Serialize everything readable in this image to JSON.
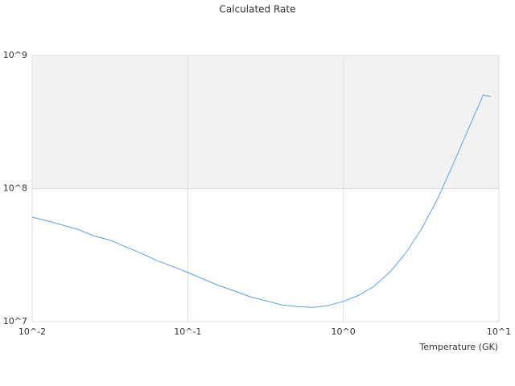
{
  "chart_data": {
    "type": "line",
    "title": "Calculated Rate",
    "x_label": "Temperature (GK)",
    "log_x": true,
    "log_y": true,
    "grid": true,
    "xlim": [
      0.01,
      10
    ],
    "xticks": [
      {
        "value": 0.01,
        "label": "10^-2"
      },
      {
        "value": 0.1,
        "label": "10^-1"
      },
      {
        "value": 1,
        "label": "10^0"
      },
      {
        "value": 10,
        "label": "10^1"
      }
    ],
    "ylim": [
      10000000,
      1000000000
    ],
    "yticks": [
      {
        "value": 10000000,
        "label": "10^7"
      },
      {
        "value": 100000000,
        "label": "10^8"
      },
      {
        "value": 1000000000,
        "label": "10^9"
      }
    ],
    "series": [
      {
        "color": "#5aa0e6",
        "x": [
          0.01,
          0.0126,
          0.0158,
          0.02,
          0.0251,
          0.0316,
          0.0398,
          0.0501,
          0.0631,
          0.0794,
          0.1,
          0.126,
          0.158,
          0.2,
          0.251,
          0.316,
          0.398,
          0.501,
          0.631,
          0.794,
          1,
          1.26,
          1.58,
          2,
          2.51,
          3.16,
          3.98,
          5.01,
          6.31,
          7.94,
          8.9
        ],
        "values": [
          61000000,
          57000000,
          53000000,
          49000000,
          44000000,
          41000000,
          36500000,
          32700000,
          28800000,
          26100000,
          23400000,
          20900000,
          18700000,
          17000000,
          15400000,
          14400000,
          13400000,
          13000000,
          12800000,
          13200000,
          14200000,
          15800000,
          18500000,
          23700000,
          32700000,
          49000000,
          81000000,
          147000000,
          274000000,
          506000000,
          490000000
        ]
      }
    ]
  }
}
